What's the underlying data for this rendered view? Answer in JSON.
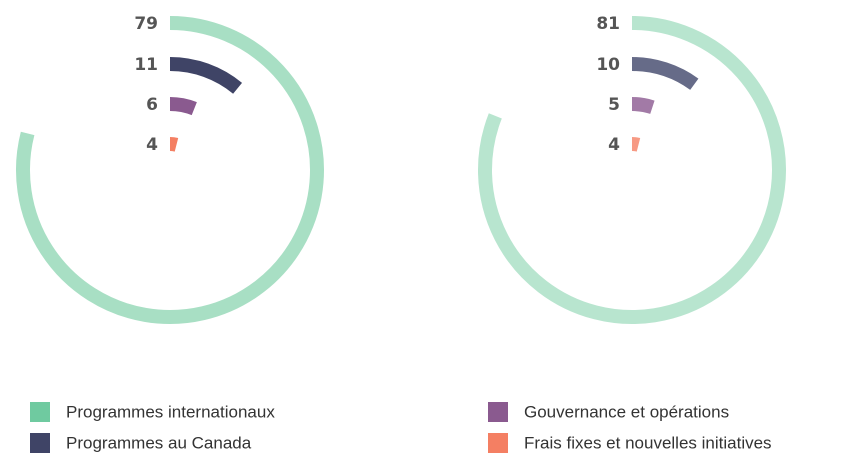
{
  "chart_data": [
    {
      "type": "radial_bar",
      "values": [
        79,
        11,
        6,
        4
      ],
      "colors": [
        "#a8dfc4",
        "#3f4466",
        "#8a5a8f",
        "#f47f63"
      ],
      "rlim": [
        0,
        100
      ]
    },
    {
      "type": "radial_bar",
      "values": [
        81,
        10,
        5,
        4
      ],
      "colors": [
        "#b8e5cf",
        "#666b88",
        "#a27aa6",
        "#f79a84"
      ],
      "rlim": [
        0,
        100
      ]
    }
  ],
  "legend": {
    "items": [
      {
        "name": "Programmes internationaux",
        "color": "#6fcaa0"
      },
      {
        "name": "Programmes au Canada",
        "color": "#3f4466"
      },
      {
        "name": "Gouvernance et opérations",
        "color": "#8a5a8f"
      },
      {
        "name": "Frais fixes et nouvelles initiatives",
        "color": "#f47f63"
      }
    ]
  }
}
